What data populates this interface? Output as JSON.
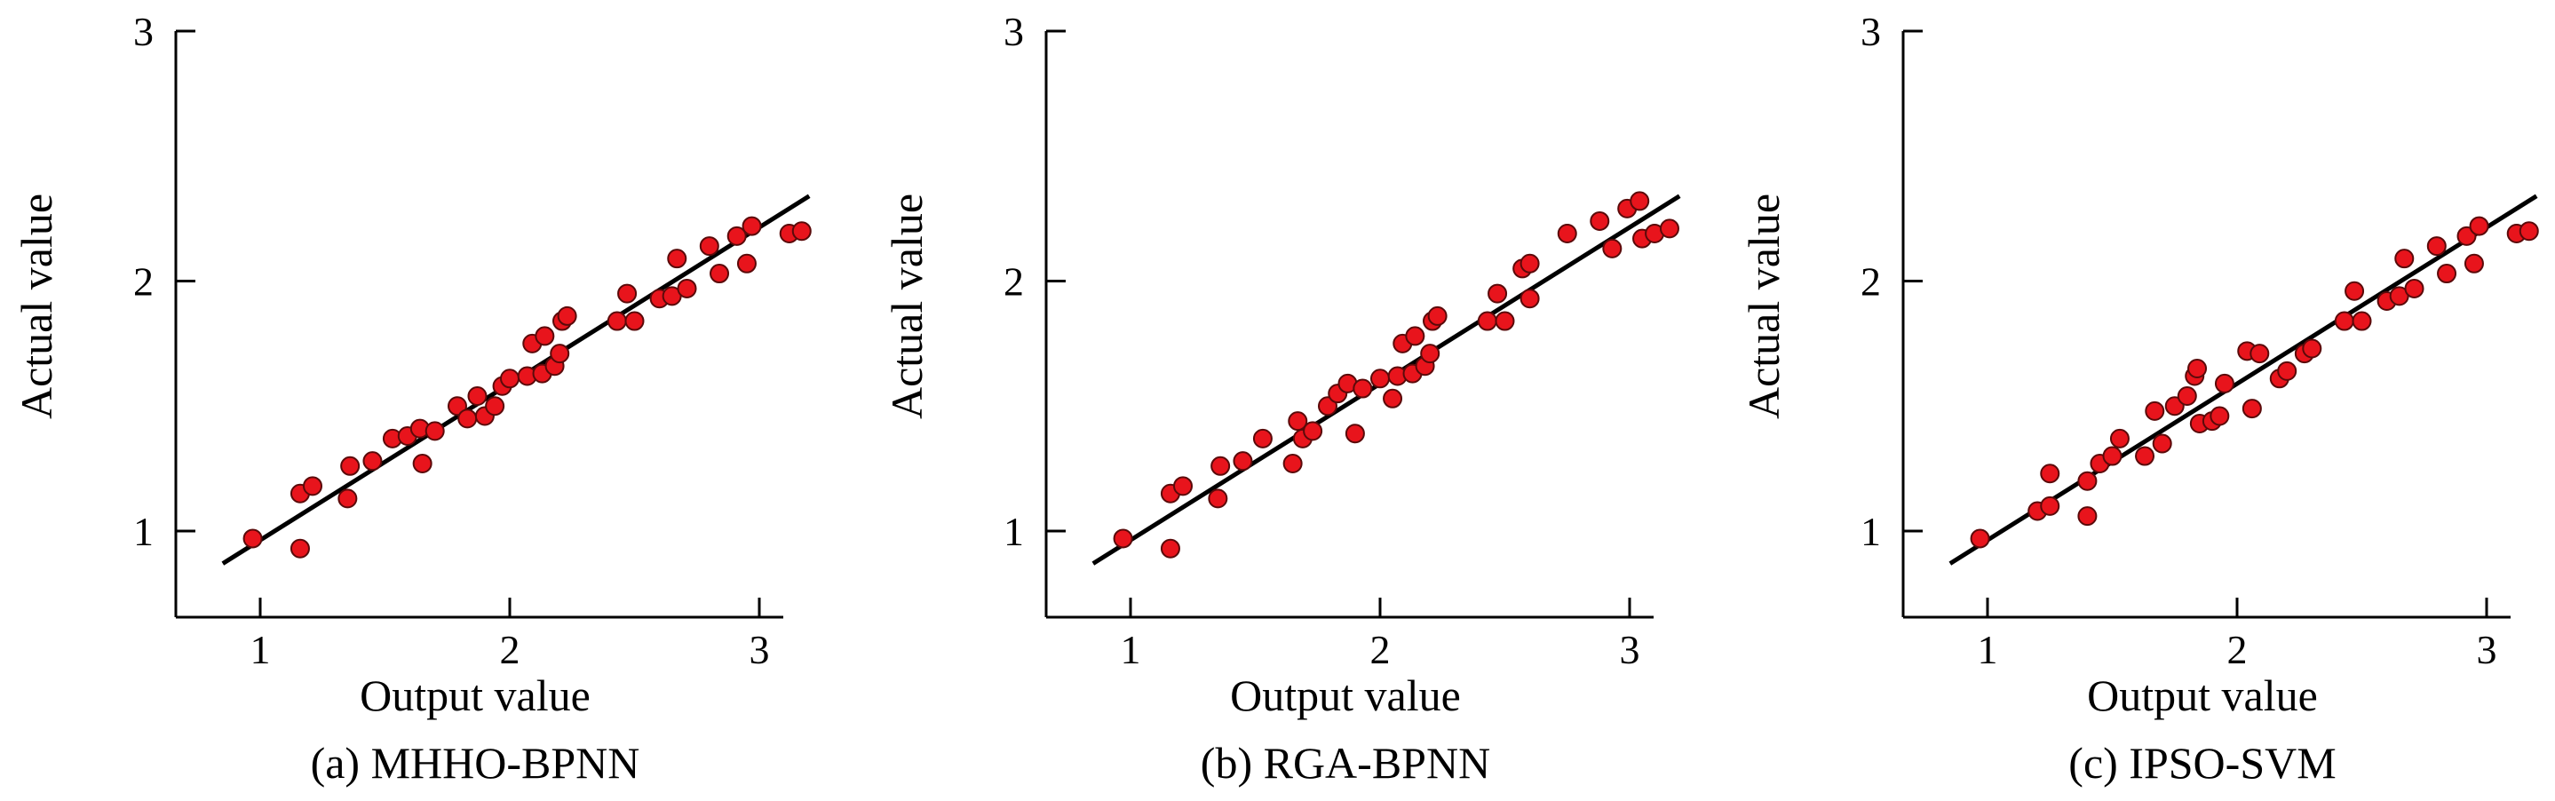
{
  "chart_data": [
    {
      "type": "scatter",
      "caption": "(a)  MHHO-BPNN",
      "xlabel": "Output value",
      "ylabel": "Actual value",
      "xlim": [
        0.7,
        3.1
      ],
      "ylim": [
        0.7,
        3.0
      ],
      "xticks": [
        "1",
        "2",
        "3"
      ],
      "yticks": [
        "1",
        "2",
        "3"
      ],
      "marker_color": "#e8141c",
      "line_color": "#000000",
      "fit_line": [
        [
          0.85,
          0.87
        ],
        [
          3.2,
          2.34
        ]
      ],
      "points": [
        [
          0.97,
          0.97
        ],
        [
          1.16,
          1.15
        ],
        [
          1.21,
          1.18
        ],
        [
          1.16,
          0.93
        ],
        [
          1.35,
          1.13
        ],
        [
          1.36,
          1.26
        ],
        [
          1.45,
          1.28
        ],
        [
          1.53,
          1.37
        ],
        [
          1.59,
          1.38
        ],
        [
          1.64,
          1.41
        ],
        [
          1.65,
          1.27
        ],
        [
          1.7,
          1.4
        ],
        [
          1.79,
          1.5
        ],
        [
          1.83,
          1.45
        ],
        [
          1.87,
          1.54
        ],
        [
          1.9,
          1.46
        ],
        [
          1.94,
          1.5
        ],
        [
          1.97,
          1.58
        ],
        [
          2.0,
          1.61
        ],
        [
          2.07,
          1.62
        ],
        [
          2.09,
          1.75
        ],
        [
          2.13,
          1.63
        ],
        [
          2.14,
          1.78
        ],
        [
          2.18,
          1.66
        ],
        [
          2.2,
          1.71
        ],
        [
          2.21,
          1.84
        ],
        [
          2.23,
          1.86
        ],
        [
          2.43,
          1.84
        ],
        [
          2.47,
          1.95
        ],
        [
          2.5,
          1.84
        ],
        [
          2.6,
          1.93
        ],
        [
          2.65,
          1.94
        ],
        [
          2.67,
          2.09
        ],
        [
          2.71,
          1.97
        ],
        [
          2.8,
          2.14
        ],
        [
          2.84,
          2.03
        ],
        [
          2.91,
          2.18
        ],
        [
          2.95,
          2.07
        ],
        [
          2.97,
          2.22
        ],
        [
          3.12,
          2.19
        ],
        [
          3.17,
          2.2
        ]
      ]
    },
    {
      "type": "scatter",
      "caption": "(b)  RGA-BPNN",
      "xlabel": "Output value",
      "ylabel": "Actual value",
      "xlim": [
        0.7,
        3.1
      ],
      "ylim": [
        0.7,
        3.0
      ],
      "xticks": [
        "1",
        "2",
        "3"
      ],
      "yticks": [
        "1",
        "2",
        "3"
      ],
      "marker_color": "#e8141c",
      "line_color": "#000000",
      "fit_line": [
        [
          0.85,
          0.87
        ],
        [
          3.2,
          2.34
        ]
      ],
      "points": [
        [
          0.97,
          0.97
        ],
        [
          1.16,
          1.15
        ],
        [
          1.21,
          1.18
        ],
        [
          1.16,
          0.93
        ],
        [
          1.35,
          1.13
        ],
        [
          1.36,
          1.26
        ],
        [
          1.45,
          1.28
        ],
        [
          1.53,
          1.37
        ],
        [
          1.65,
          1.27
        ],
        [
          1.67,
          1.44
        ],
        [
          1.69,
          1.37
        ],
        [
          1.73,
          1.4
        ],
        [
          1.79,
          1.5
        ],
        [
          1.83,
          1.55
        ],
        [
          1.87,
          1.59
        ],
        [
          1.9,
          1.39
        ],
        [
          1.93,
          1.57
        ],
        [
          2.0,
          1.61
        ],
        [
          2.05,
          1.53
        ],
        [
          2.07,
          1.62
        ],
        [
          2.09,
          1.75
        ],
        [
          2.13,
          1.63
        ],
        [
          2.14,
          1.78
        ],
        [
          2.18,
          1.66
        ],
        [
          2.2,
          1.71
        ],
        [
          2.21,
          1.84
        ],
        [
          2.23,
          1.86
        ],
        [
          2.43,
          1.84
        ],
        [
          2.47,
          1.95
        ],
        [
          2.5,
          1.84
        ],
        [
          2.57,
          2.05
        ],
        [
          2.6,
          2.07
        ],
        [
          2.6,
          1.93
        ],
        [
          2.75,
          2.19
        ],
        [
          2.88,
          2.24
        ],
        [
          2.93,
          2.13
        ],
        [
          2.99,
          2.29
        ],
        [
          3.04,
          2.32
        ],
        [
          3.05,
          2.17
        ],
        [
          3.1,
          2.19
        ],
        [
          3.16,
          2.21
        ]
      ]
    },
    {
      "type": "scatter",
      "caption": "(c)  IPSO-SVM",
      "xlabel": "Output value",
      "ylabel": "Actual value",
      "xlim": [
        0.7,
        3.1
      ],
      "ylim": [
        0.7,
        3.0
      ],
      "xticks": [
        "1",
        "2",
        "3"
      ],
      "yticks": [
        "1",
        "2",
        "3"
      ],
      "marker_color": "#e8141c",
      "line_color": "#000000",
      "fit_line": [
        [
          0.85,
          0.87
        ],
        [
          3.2,
          2.34
        ]
      ],
      "points": [
        [
          0.97,
          0.97
        ],
        [
          1.2,
          1.08
        ],
        [
          1.25,
          1.1
        ],
        [
          1.25,
          1.23
        ],
        [
          1.4,
          1.06
        ],
        [
          1.4,
          1.2
        ],
        [
          1.45,
          1.27
        ],
        [
          1.5,
          1.3
        ],
        [
          1.53,
          1.37
        ],
        [
          1.63,
          1.3
        ],
        [
          1.67,
          1.48
        ],
        [
          1.7,
          1.35
        ],
        [
          1.75,
          1.5
        ],
        [
          1.8,
          1.54
        ],
        [
          1.83,
          1.62
        ],
        [
          1.84,
          1.65
        ],
        [
          1.85,
          1.43
        ],
        [
          1.9,
          1.44
        ],
        [
          1.93,
          1.46
        ],
        [
          1.95,
          1.59
        ],
        [
          2.04,
          1.72
        ],
        [
          2.06,
          1.49
        ],
        [
          2.09,
          1.71
        ],
        [
          2.17,
          1.61
        ],
        [
          2.2,
          1.64
        ],
        [
          2.27,
          1.71
        ],
        [
          2.3,
          1.73
        ],
        [
          2.43,
          1.84
        ],
        [
          2.47,
          1.96
        ],
        [
          2.5,
          1.84
        ],
        [
          2.6,
          1.92
        ],
        [
          2.65,
          1.94
        ],
        [
          2.67,
          2.09
        ],
        [
          2.71,
          1.97
        ],
        [
          2.8,
          2.14
        ],
        [
          2.84,
          2.03
        ],
        [
          2.92,
          2.18
        ],
        [
          2.95,
          2.07
        ],
        [
          2.97,
          2.22
        ],
        [
          3.12,
          2.19
        ],
        [
          3.17,
          2.2
        ]
      ]
    }
  ]
}
